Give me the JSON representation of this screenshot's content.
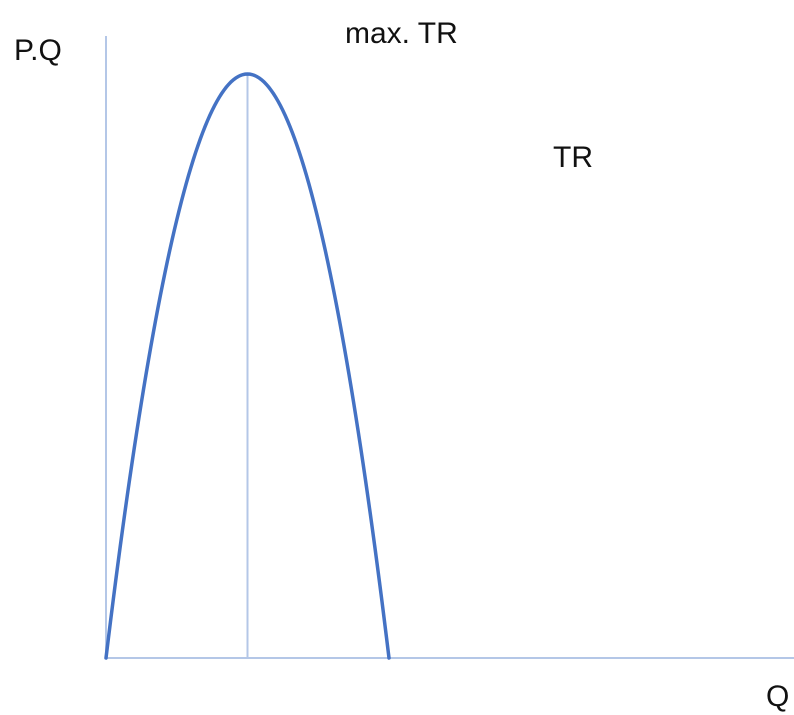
{
  "chart_data": {
    "type": "line",
    "title": "",
    "xlabel": "Q",
    "ylabel": "P.Q",
    "annotations": {
      "max_label": "max. TR",
      "curve_label": "TR"
    },
    "series": [
      {
        "name": "TR",
        "x": [
          0,
          0.5,
          1
        ],
        "y": [
          0,
          1,
          0
        ]
      }
    ],
    "marker_x": 0.5,
    "xlim": [
      0,
      1.1
    ],
    "ylim": [
      0,
      1.1
    ],
    "grid": false,
    "legend": "none",
    "colors": {
      "curve": "#4472c4",
      "axes": "#b4c7e7",
      "marker_line": "#b4c7e7",
      "text": "#111111"
    }
  }
}
